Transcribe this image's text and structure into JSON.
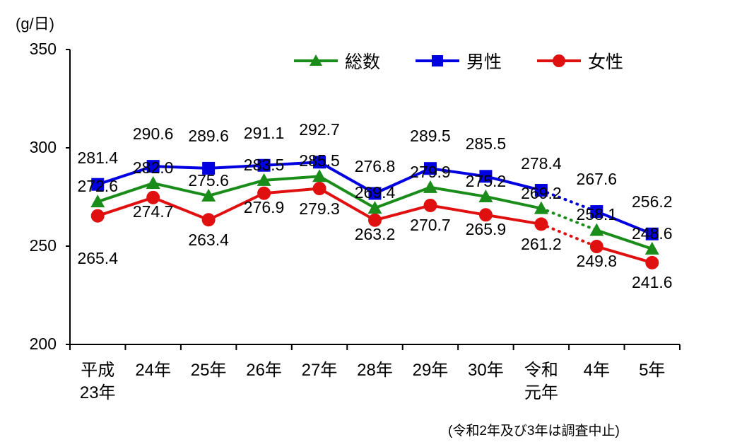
{
  "chart_data": {
    "type": "line",
    "title": "",
    "unit_label": "(g/日)",
    "xlabel": "",
    "ylabel": "(g/日)",
    "ylim": [
      200,
      350
    ],
    "yticks": [
      "200",
      "250",
      "300",
      "350"
    ],
    "grid": false,
    "legend_position": "top-right",
    "categories": [
      "平成23年",
      "24年",
      "25年",
      "26年",
      "27年",
      "28年",
      "29年",
      "30年",
      "令和元年",
      "4年",
      "5年"
    ],
    "category_lines": [
      [
        "平成",
        "23年"
      ],
      [
        "24年"
      ],
      [
        "25年"
      ],
      [
        "26年"
      ],
      [
        "27年"
      ],
      [
        "28年"
      ],
      [
        "29年"
      ],
      [
        "30年"
      ],
      [
        "令和",
        "元年"
      ],
      [
        "4年"
      ],
      [
        "5年"
      ]
    ],
    "series": [
      {
        "name": "総数",
        "color": "#1a8c1a",
        "marker": "triangle",
        "values": [
          272.6,
          282.0,
          275.6,
          283.5,
          285.5,
          269.4,
          279.9,
          275.2,
          269.2,
          258.1,
          248.6
        ]
      },
      {
        "name": "男性",
        "color": "#0000e0",
        "marker": "square",
        "values": [
          281.4,
          290.6,
          289.6,
          291.1,
          292.7,
          276.8,
          289.5,
          285.5,
          278.4,
          267.6,
          256.2
        ]
      },
      {
        "name": "女性",
        "color": "#e01010",
        "marker": "circle",
        "values": [
          265.4,
          274.7,
          263.4,
          276.9,
          279.3,
          263.2,
          270.7,
          265.9,
          261.2,
          249.8,
          241.6
        ]
      }
    ],
    "annotations": [
      "Dotted segment between 令和元年 and 4年 (survey suspended in 令和2年 and 3年)"
    ],
    "note": "(令和2年及び3年は調査中止)"
  }
}
